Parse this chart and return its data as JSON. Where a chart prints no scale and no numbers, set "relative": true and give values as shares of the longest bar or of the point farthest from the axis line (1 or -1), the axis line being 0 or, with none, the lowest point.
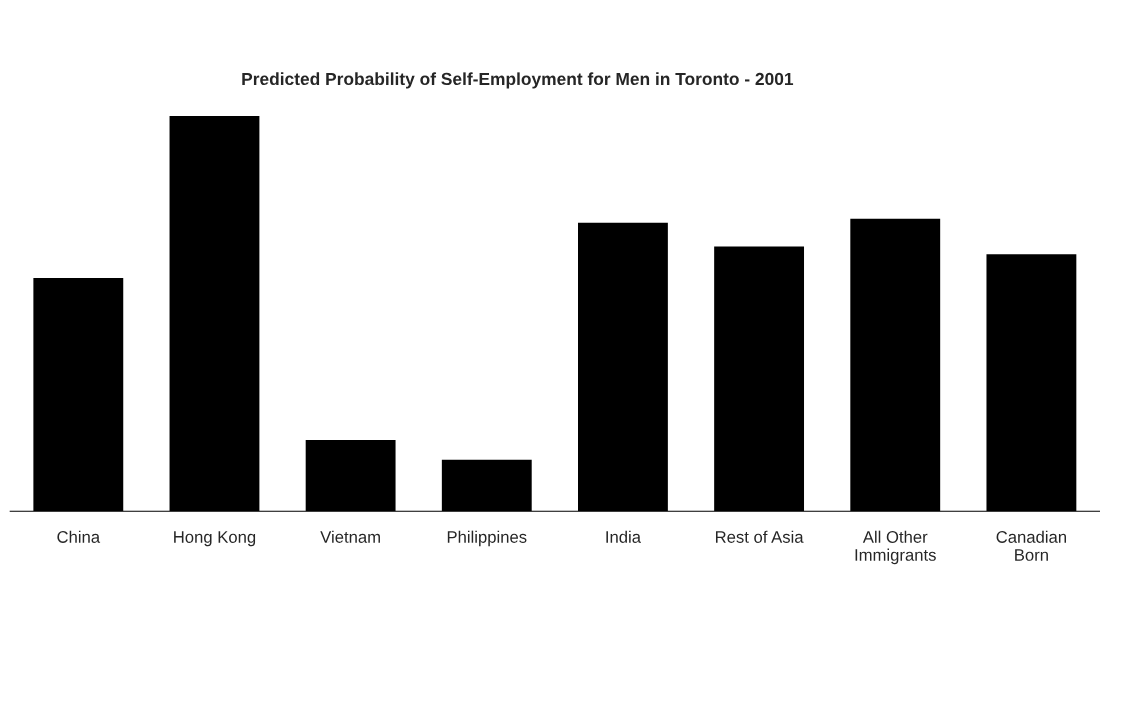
{
  "chart_data": {
    "type": "bar",
    "title": "Predicted Probability of Self-Employment for Men in Toronto - 2001",
    "categories": [
      "China",
      "Hong Kong",
      "Vietnam",
      "Philippines",
      "India",
      "Rest of Asia",
      "All Other\nImmigrants",
      "Canadian\nBorn"
    ],
    "values": [
      0.59,
      1,
      0.18,
      0.13,
      0.73,
      0.67,
      0.74,
      0.65
    ],
    "color": "#000000",
    "relative": true,
    "grid": false,
    "legend": false
  }
}
